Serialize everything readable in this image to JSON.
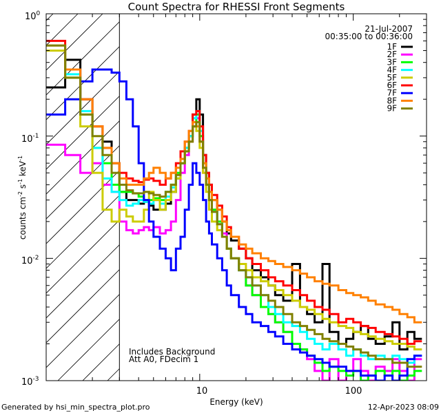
{
  "chart_data": {
    "type": "line",
    "title": "Count Spectra for RHESSI Front Segments",
    "xlabel": "Energy (keV)",
    "ylabel_parts": [
      "counts cm",
      "-2",
      " s",
      "-1",
      " keV",
      "-1"
    ],
    "xscale": "log",
    "yscale": "log",
    "xlim": [
      1,
      300
    ],
    "ylim": [
      0.001,
      1
    ],
    "x_ticks": [
      {
        "v": 10,
        "label": "10"
      },
      {
        "v": 100,
        "label": "100"
      }
    ],
    "y_ticks": [
      {
        "v": 1,
        "base": "10",
        "exp": "0"
      },
      {
        "v": 0.1,
        "base": "10",
        "exp": "-1"
      },
      {
        "v": 0.01,
        "base": "10",
        "exp": "-2"
      },
      {
        "v": 0.001,
        "base": "10",
        "exp": "-3"
      }
    ],
    "hatch_region": {
      "x_min": 1,
      "x_max": 3,
      "note": "excluded low-energy region (hatched)"
    },
    "annotation": {
      "date": "21-Jul-2007",
      "time_range": "00:35:00 to 00:36:00",
      "notes": [
        "Includes Background",
        "Att A0, FDecim 1"
      ]
    },
    "footer_left": "Generated by hsi_min_spectra_plot.pro",
    "footer_right": "12-Apr-2023 08:09",
    "bin_edges": [
      1,
      1.33,
      1.67,
      2,
      2.33,
      2.67,
      3,
      3.33,
      3.67,
      4,
      4.33,
      4.67,
      5,
      5.5,
      6,
      6.5,
      7,
      7.5,
      8,
      8.5,
      9,
      9.5,
      10,
      10.5,
      11,
      11.5,
      12,
      13,
      14,
      15,
      16,
      18,
      20,
      22,
      25,
      28,
      31,
      35,
      40,
      45,
      50,
      56,
      63,
      70,
      80,
      90,
      100,
      112,
      125,
      140,
      160,
      180,
      200,
      225,
      250,
      280
    ],
    "series": [
      {
        "name": "1F",
        "color": "#000000",
        "values": [
          0.25,
          0.42,
          0.2,
          0.12,
          0.09,
          0.06,
          0.035,
          0.03,
          0.03,
          0.028,
          0.029,
          0.027,
          0.025,
          0.025,
          0.028,
          0.035,
          0.045,
          0.06,
          0.08,
          0.1,
          0.15,
          0.2,
          0.15,
          0.07,
          0.05,
          0.04,
          0.03,
          0.025,
          0.02,
          0.016,
          0.014,
          0.012,
          0.01,
          0.008,
          0.007,
          0.006,
          0.005,
          0.0045,
          0.009,
          0.004,
          0.0035,
          0.003,
          0.009,
          0.0025,
          0.002,
          0.0022,
          0.0025,
          0.0028,
          0.0022,
          0.002,
          0.0023,
          0.003,
          0.0018,
          0.0025,
          0.0022
        ]
      },
      {
        "name": "2F",
        "color": "#ff00ff",
        "values": [
          0.085,
          0.07,
          0.05,
          0.06,
          0.04,
          0.035,
          0.02,
          0.017,
          0.016,
          0.017,
          0.018,
          0.017,
          0.018,
          0.016,
          0.017,
          0.02,
          0.03,
          0.05,
          0.07,
          0.09,
          0.12,
          0.14,
          0.1,
          0.05,
          0.04,
          0.03,
          0.025,
          0.02,
          0.016,
          0.012,
          0.01,
          0.008,
          0.006,
          0.005,
          0.004,
          0.0035,
          0.003,
          0.0025,
          0.002,
          0.0018,
          0.0015,
          0.0012,
          0.001,
          0.0015,
          0.001,
          0.0012,
          0.0015,
          0.0012,
          0.001,
          0.0013,
          0.0012,
          0.0015,
          0.0012,
          0.001,
          0.0015
        ]
      },
      {
        "name": "3F",
        "color": "#00ff00",
        "values": [
          0.5,
          0.3,
          0.15,
          0.08,
          0.06,
          0.04,
          0.035,
          0.035,
          0.034,
          0.032,
          0.03,
          0.03,
          0.031,
          0.03,
          0.035,
          0.04,
          0.05,
          0.06,
          0.08,
          0.1,
          0.12,
          0.15,
          0.1,
          0.06,
          0.04,
          0.03,
          0.025,
          0.02,
          0.015,
          0.012,
          0.01,
          0.008,
          0.006,
          0.005,
          0.004,
          0.0035,
          0.003,
          0.0025,
          0.002,
          0.0018,
          0.0016,
          0.0014,
          0.0012,
          0.0013,
          0.0012,
          0.0011,
          0.0012,
          0.001,
          0.0011,
          0.0012,
          0.0011,
          0.0012,
          0.001,
          0.0011,
          0.0012
        ]
      },
      {
        "name": "4F",
        "color": "#00ffff",
        "values": [
          0.5,
          0.32,
          0.16,
          0.08,
          0.045,
          0.035,
          0.03,
          0.027,
          0.028,
          0.03,
          0.029,
          0.028,
          0.03,
          0.028,
          0.032,
          0.038,
          0.045,
          0.06,
          0.08,
          0.1,
          0.14,
          0.16,
          0.11,
          0.06,
          0.04,
          0.03,
          0.024,
          0.019,
          0.015,
          0.012,
          0.01,
          0.008,
          0.007,
          0.006,
          0.005,
          0.004,
          0.0035,
          0.003,
          0.0028,
          0.0025,
          0.0022,
          0.002,
          0.0018,
          0.002,
          0.0018,
          0.0016,
          0.0018,
          0.0016,
          0.0015,
          0.0016,
          0.0015,
          0.0016,
          0.0015,
          0.0014,
          0.0016
        ]
      },
      {
        "name": "5F",
        "color": "#cccc00",
        "values": [
          0.5,
          0.3,
          0.12,
          0.05,
          0.025,
          0.02,
          0.025,
          0.022,
          0.02,
          0.02,
          0.025,
          0.035,
          0.03,
          0.025,
          0.03,
          0.035,
          0.045,
          0.06,
          0.075,
          0.09,
          0.12,
          0.11,
          0.08,
          0.05,
          0.035,
          0.025,
          0.02,
          0.017,
          0.015,
          0.012,
          0.01,
          0.009,
          0.008,
          0.007,
          0.0065,
          0.006,
          0.0055,
          0.005,
          0.0045,
          0.004,
          0.0038,
          0.0035,
          0.0032,
          0.003,
          0.0028,
          0.0027,
          0.0025,
          0.0024,
          0.0023,
          0.0022,
          0.0021,
          0.002,
          0.002,
          0.0019,
          0.0018
        ]
      },
      {
        "name": "6F",
        "color": "#ff0000",
        "values": [
          0.6,
          0.35,
          0.2,
          0.12,
          0.08,
          0.06,
          0.05,
          0.045,
          0.043,
          0.042,
          0.044,
          0.045,
          0.043,
          0.04,
          0.045,
          0.05,
          0.06,
          0.075,
          0.09,
          0.11,
          0.15,
          0.16,
          0.12,
          0.07,
          0.05,
          0.04,
          0.033,
          0.027,
          0.022,
          0.018,
          0.015,
          0.012,
          0.01,
          0.009,
          0.008,
          0.007,
          0.0065,
          0.006,
          0.0055,
          0.005,
          0.0045,
          0.004,
          0.0038,
          0.0035,
          0.003,
          0.0032,
          0.003,
          0.0028,
          0.0027,
          0.0025,
          0.0024,
          0.0023,
          0.0022,
          0.002,
          0.0021
        ]
      },
      {
        "name": "7F",
        "color": "#0000ff",
        "values": [
          0.15,
          0.2,
          0.28,
          0.35,
          0.35,
          0.33,
          0.28,
          0.2,
          0.12,
          0.06,
          0.03,
          0.02,
          0.015,
          0.012,
          0.01,
          0.008,
          0.012,
          0.015,
          0.025,
          0.04,
          0.06,
          0.05,
          0.04,
          0.03,
          0.02,
          0.016,
          0.013,
          0.01,
          0.008,
          0.006,
          0.005,
          0.004,
          0.0035,
          0.003,
          0.0028,
          0.0025,
          0.0023,
          0.002,
          0.0018,
          0.0017,
          0.0016,
          0.0015,
          0.0014,
          0.0013,
          0.0013,
          0.0012,
          0.0012,
          0.0011,
          0.0011,
          0.001,
          0.0011,
          0.001,
          0.0011,
          0.0015,
          0.0016
        ]
      },
      {
        "name": "8F",
        "color": "#ff8000",
        "values": [
          0.55,
          0.35,
          0.2,
          0.12,
          0.08,
          0.06,
          0.045,
          0.04,
          0.04,
          0.04,
          0.045,
          0.05,
          0.055,
          0.05,
          0.045,
          0.05,
          0.055,
          0.065,
          0.09,
          0.11,
          0.13,
          0.12,
          0.09,
          0.06,
          0.045,
          0.035,
          0.03,
          0.025,
          0.02,
          0.017,
          0.015,
          0.013,
          0.012,
          0.011,
          0.01,
          0.0095,
          0.009,
          0.0085,
          0.008,
          0.0075,
          0.007,
          0.0065,
          0.0062,
          0.006,
          0.0055,
          0.0052,
          0.005,
          0.0048,
          0.0045,
          0.0042,
          0.004,
          0.0038,
          0.0035,
          0.0033,
          0.003
        ]
      },
      {
        "name": "9F",
        "color": "#808000",
        "values": [
          0.55,
          0.3,
          0.15,
          0.1,
          0.07,
          0.05,
          0.04,
          0.036,
          0.034,
          0.034,
          0.035,
          0.034,
          0.033,
          0.032,
          0.035,
          0.04,
          0.048,
          0.06,
          0.075,
          0.09,
          0.12,
          0.13,
          0.09,
          0.055,
          0.04,
          0.03,
          0.024,
          0.019,
          0.015,
          0.012,
          0.01,
          0.008,
          0.007,
          0.006,
          0.005,
          0.0045,
          0.004,
          0.0035,
          0.003,
          0.0028,
          0.0026,
          0.0024,
          0.0022,
          0.0021,
          0.002,
          0.0019,
          0.0018,
          0.0017,
          0.0016,
          0.0015,
          0.0015,
          0.0014,
          0.0014,
          0.0013,
          0.0013
        ]
      }
    ]
  }
}
